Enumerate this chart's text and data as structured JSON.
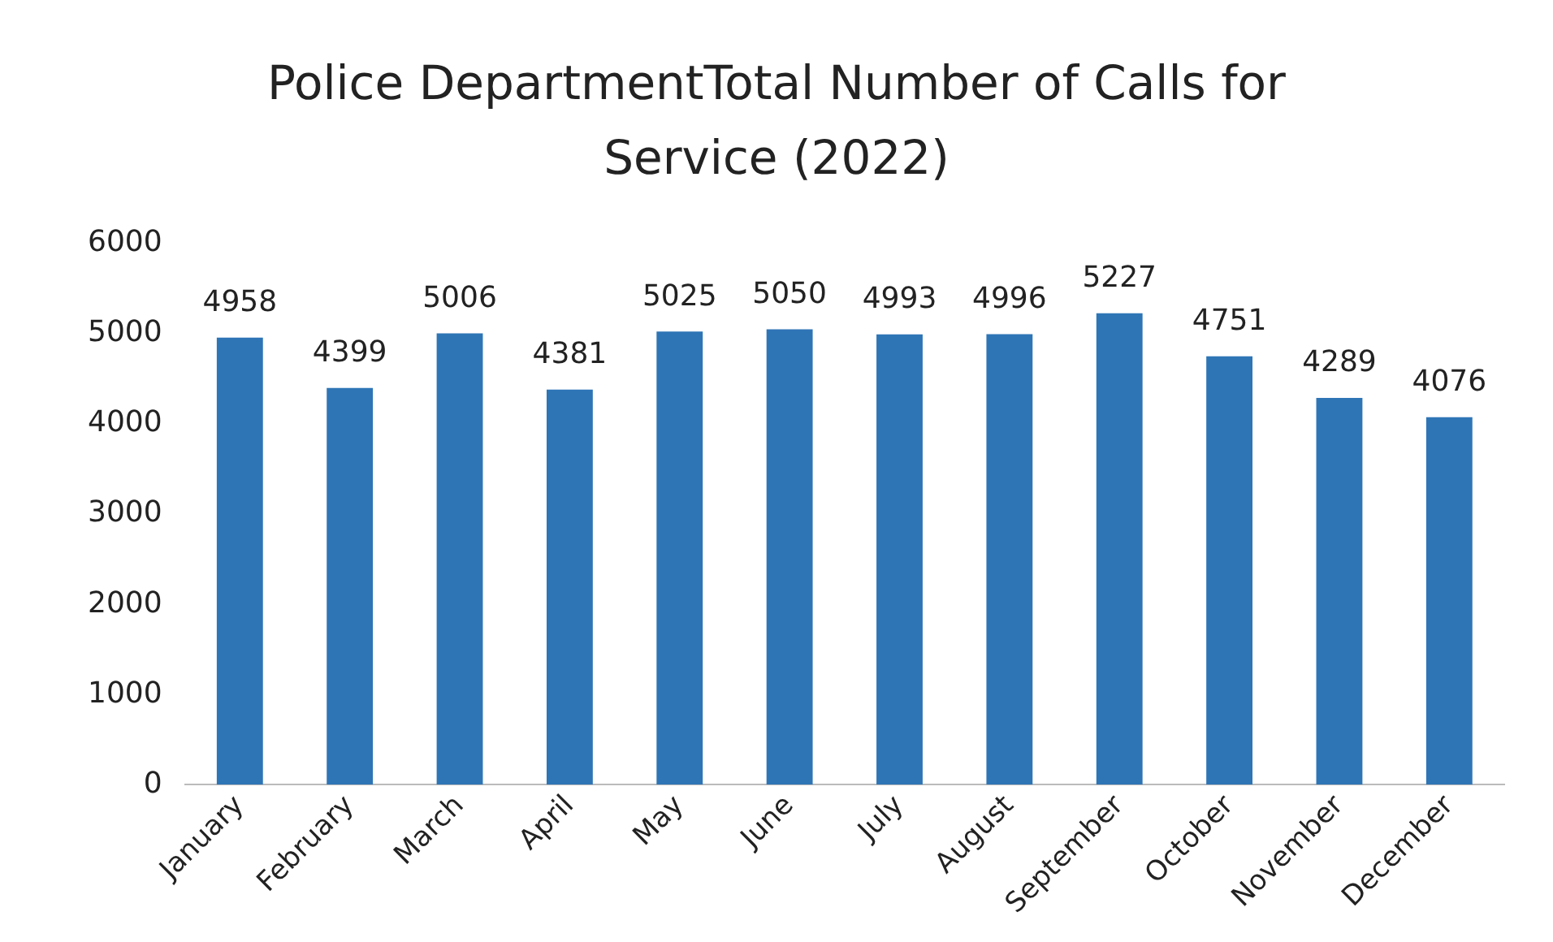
{
  "chart_data": {
    "type": "bar",
    "title": "Police DepartmentTotal Number of Calls for Service (2022)",
    "categories": [
      "January",
      "February",
      "March",
      "April",
      "May",
      "June",
      "July",
      "August",
      "September",
      "October",
      "November",
      "December"
    ],
    "values": [
      4958,
      4399,
      5006,
      4381,
      5025,
      5050,
      4993,
      4996,
      5227,
      4751,
      4289,
      4076
    ],
    "color": "#2e75b6",
    "ylim": [
      0,
      6000
    ],
    "yticks": [
      0,
      1000,
      2000,
      3000,
      4000,
      5000,
      6000
    ],
    "grid": false,
    "data_labels": true
  }
}
